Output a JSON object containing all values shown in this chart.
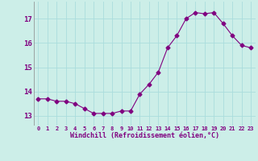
{
  "x": [
    0,
    1,
    2,
    3,
    4,
    5,
    6,
    7,
    8,
    9,
    10,
    11,
    12,
    13,
    14,
    15,
    16,
    17,
    18,
    19,
    20,
    21,
    22,
    23
  ],
  "y": [
    13.7,
    13.7,
    13.6,
    13.6,
    13.5,
    13.3,
    13.1,
    13.1,
    13.1,
    13.2,
    13.2,
    13.9,
    14.3,
    14.8,
    15.8,
    16.3,
    17.0,
    17.25,
    17.2,
    17.25,
    16.8,
    16.3,
    15.9,
    15.8
  ],
  "line_color": "#800080",
  "marker": "D",
  "marker_size": 2.5,
  "bg_color": "#cceee8",
  "grid_color": "#aadddd",
  "xlabel": "Windchill (Refroidissement éolien,°C)",
  "xlabel_color": "#800080",
  "tick_color": "#800080",
  "ylim": [
    12.6,
    17.7
  ],
  "yticks": [
    13,
    14,
    15,
    16,
    17
  ],
  "xticks": [
    0,
    1,
    2,
    3,
    4,
    5,
    6,
    7,
    8,
    9,
    10,
    11,
    12,
    13,
    14,
    15,
    16,
    17,
    18,
    19,
    20,
    21,
    22,
    23
  ],
  "xlim": [
    -0.5,
    23.5
  ]
}
